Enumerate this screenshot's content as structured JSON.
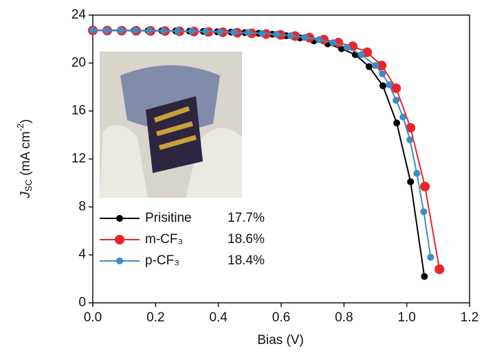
{
  "chart_data": {
    "type": "line",
    "x_label": "Bias (V)",
    "y_label": [
      "J",
      "SC",
      " (mA cm",
      "-2",
      ")"
    ],
    "xlim": [
      0,
      1.2
    ],
    "xticks": [
      {
        "value": 0,
        "label": "0.0"
      },
      0.2,
      0.4,
      0.6,
      0.8,
      {
        "value": 1,
        "label": "1.0"
      },
      1.2
    ],
    "ylim": [
      0,
      24
    ],
    "yticks": [
      0,
      4,
      8,
      12,
      16,
      20,
      24
    ],
    "legend": "lower left",
    "series": [
      {
        "name": "Prisitine",
        "efficiency": "17.7%",
        "color": "#000000",
        "marker_size": 5,
        "x": [
          0,
          0.044,
          0.088,
          0.132,
          0.176,
          0.22,
          0.264,
          0.308,
          0.352,
          0.396,
          0.44,
          0.484,
          0.528,
          0.572,
          0.616,
          0.66,
          0.704,
          0.748,
          0.792,
          0.836,
          0.88,
          0.924,
          0.968,
          1.012,
          1.056
        ],
        "values": [
          22.75,
          22.74,
          22.73,
          22.72,
          22.71,
          22.7,
          22.68,
          22.66,
          22.64,
          22.61,
          22.58,
          22.54,
          22.48,
          22.4,
          22.28,
          22.1,
          21.85,
          21.6,
          21.2,
          20.7,
          19.7,
          18.1,
          15,
          10.1,
          2.2
        ]
      },
      {
        "name": "m-CF₃",
        "efficiency": "18.6%",
        "color": "#e8262a",
        "marker_size": 7,
        "x": [
          0,
          0.046,
          0.092,
          0.138,
          0.184,
          0.23,
          0.276,
          0.322,
          0.368,
          0.414,
          0.46,
          0.506,
          0.552,
          0.598,
          0.644,
          0.69,
          0.736,
          0.782,
          0.828,
          0.874,
          0.92,
          0.966,
          1.012,
          1.058,
          1.104
        ],
        "values": [
          22.72,
          22.71,
          22.7,
          22.69,
          22.68,
          22.67,
          22.65,
          22.63,
          22.6,
          22.57,
          22.53,
          22.48,
          22.42,
          22.35,
          22.25,
          22.12,
          21.95,
          21.7,
          21.4,
          20.9,
          19.8,
          17.9,
          14.6,
          9.7,
          2.8
        ]
      },
      {
        "name": "p-CF₃",
        "efficiency": "18.4%",
        "color": "#3d8cc4",
        "marker_size": 5,
        "x": [
          0,
          0.045,
          0.09,
          0.135,
          0.18,
          0.225,
          0.27,
          0.315,
          0.36,
          0.405,
          0.45,
          0.495,
          0.54,
          0.585,
          0.63,
          0.675,
          0.72,
          0.765,
          0.81,
          0.855,
          0.9,
          0.922,
          0.944,
          0.966,
          0.988,
          1.01,
          1.032,
          1.054,
          1.076
        ],
        "values": [
          22.74,
          22.73,
          22.72,
          22.71,
          22.7,
          22.69,
          22.68,
          22.66,
          22.64,
          22.61,
          22.58,
          22.54,
          22.48,
          22.4,
          22.28,
          22.14,
          21.95,
          21.7,
          21.3,
          20.7,
          19.8,
          19.1,
          18.2,
          16.9,
          15.5,
          13.6,
          10.8,
          7.6,
          3.8
        ]
      }
    ]
  }
}
